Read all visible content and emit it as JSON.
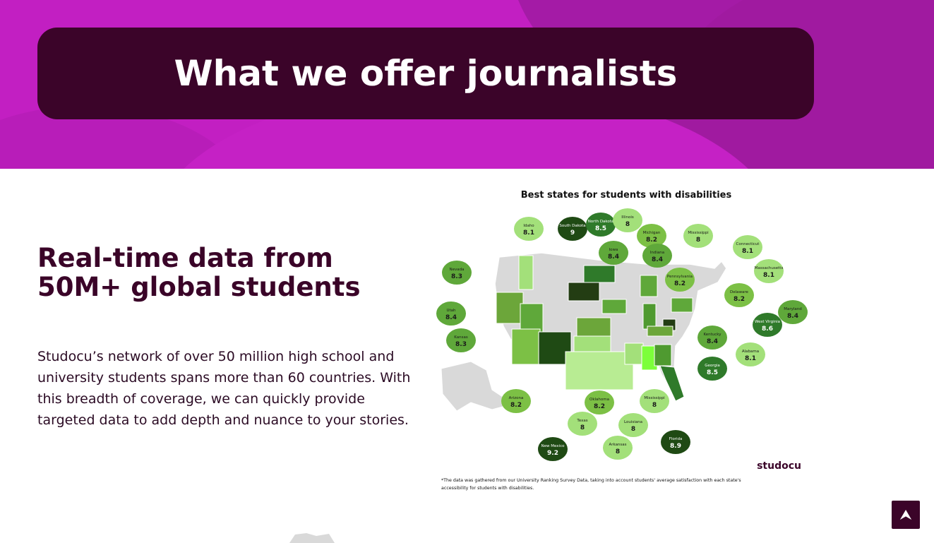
{
  "hero": {
    "title": "What we offer journalists"
  },
  "section": {
    "heading": "Real-time data from 50M+ global students",
    "body": "Studocu’s network of over 50 million high school and university students spans more than 60 countries. With this breadth of coverage, we can quickly provide targeted data to add depth and nuance to your stories."
  },
  "infographic": {
    "title": "Best  states for students with disabilities",
    "brand": "studocu",
    "footnote_line1": "*The data was gathered from our University Ranking Survey Data, taking into account students' average satisfaction with each state's",
    "footnote_line2": "accessibility for students with disabilities.",
    "states": [
      {
        "name": "Idaho",
        "score": "8.1"
      },
      {
        "name": "South Dakota",
        "score": "9"
      },
      {
        "name": "North Dakota",
        "score": "8.5"
      },
      {
        "name": "Illinois",
        "score": "8"
      },
      {
        "name": "Michigan",
        "score": "8.2"
      },
      {
        "name": "Mississippi",
        "score": "8"
      },
      {
        "name": "Connecticut",
        "score": "8.1"
      },
      {
        "name": "Nevada",
        "score": "8.3"
      },
      {
        "name": "Iowa",
        "score": "8.4"
      },
      {
        "name": "Indiana",
        "score": "8.4"
      },
      {
        "name": "Massachusetts",
        "score": "8.1"
      },
      {
        "name": "Pennsylvania",
        "score": "8.2"
      },
      {
        "name": "Delaware",
        "score": "8.2"
      },
      {
        "name": "Utah",
        "score": "8.4"
      },
      {
        "name": "Maryland",
        "score": "8.4"
      },
      {
        "name": "Kansas",
        "score": "8.3"
      },
      {
        "name": "West Virginia",
        "score": "8.6"
      },
      {
        "name": "Kentucky",
        "score": "8.4"
      },
      {
        "name": "Alabama",
        "score": "8.1"
      },
      {
        "name": "Georgia",
        "score": "8.5"
      },
      {
        "name": "Arizona",
        "score": "8.2"
      },
      {
        "name": "Oklahoma",
        "score": "8.2"
      },
      {
        "name": "Mississippi",
        "score": "8"
      },
      {
        "name": "Texas",
        "score": "8"
      },
      {
        "name": "Louisiana",
        "score": "8"
      },
      {
        "name": "New Mexico",
        "score": "9.2"
      },
      {
        "name": "Arkansas",
        "score": "8"
      },
      {
        "name": "Florida",
        "score": "8.9"
      }
    ]
  },
  "colors": {
    "hero_bg": "#c21fc2",
    "dark": "#3b0429",
    "green_light": "#a3e07a",
    "green_mid": "#5fa83a",
    "green_dark": "#1f4a14"
  },
  "icons": {
    "scroll_top": "chevron-double-up-icon"
  },
  "scroll_top": {
    "glyph": "⮝"
  }
}
